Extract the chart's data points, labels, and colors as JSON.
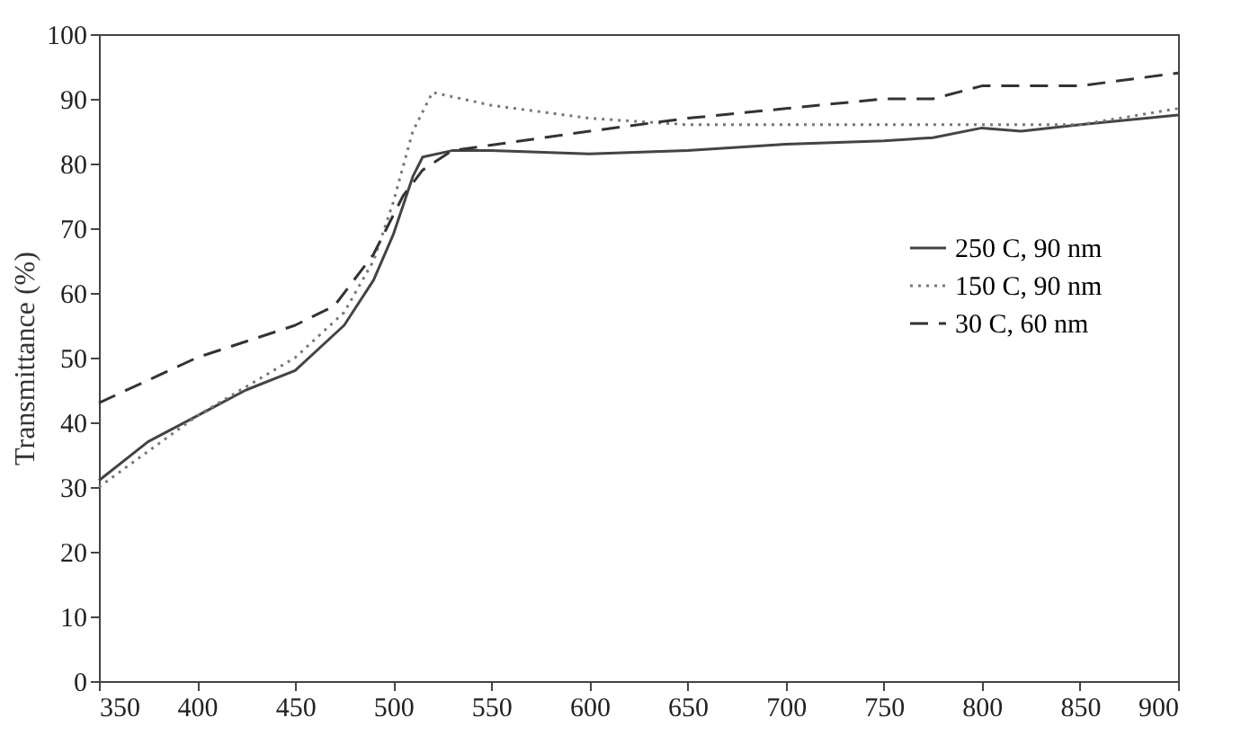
{
  "chart_data": {
    "type": "line",
    "ylabel": "Transmittance (%)",
    "xlim": [
      350,
      900
    ],
    "xticks": [
      350,
      400,
      450,
      500,
      550,
      600,
      650,
      700,
      750,
      800,
      850,
      900
    ],
    "ylim": [
      0,
      100
    ],
    "yticks": [
      0,
      10,
      20,
      30,
      40,
      50,
      60,
      70,
      80,
      90,
      100
    ],
    "grid": false,
    "legend": "right",
    "marker": "none",
    "series": [
      {
        "name": "250 C, 90 nm",
        "color": "#444444",
        "line_style": "solid",
        "x": [
          350,
          375,
          400,
          425,
          450,
          475,
          490,
          500,
          510,
          515,
          530,
          550,
          600,
          650,
          700,
          750,
          775,
          800,
          820,
          850,
          900
        ],
        "values": [
          31,
          37,
          41,
          45,
          48,
          55,
          62,
          69,
          78,
          81,
          82,
          82,
          81.5,
          82,
          83,
          83.5,
          84,
          85.5,
          85,
          86,
          87.5
        ]
      },
      {
        "name": "150 C, 90 nm",
        "color": "#777777",
        "line_style": "dotted",
        "x": [
          350,
          400,
          450,
          475,
          490,
          500,
          510,
          520,
          550,
          600,
          650,
          700,
          800,
          850,
          900
        ],
        "values": [
          30,
          41,
          50,
          57,
          65,
          74,
          85,
          91,
          89,
          87,
          86,
          86,
          86,
          86,
          88.5
        ]
      },
      {
        "name": "30 C, 60 nm",
        "color": "#333333",
        "line_style": "dashed",
        "x": [
          350,
          400,
          450,
          470,
          490,
          505,
          515,
          530,
          600,
          650,
          700,
          750,
          775,
          800,
          850,
          900
        ],
        "values": [
          43,
          50,
          55,
          58,
          66,
          75,
          79,
          82,
          85,
          87,
          88.5,
          90,
          90,
          92,
          92,
          94
        ]
      }
    ]
  }
}
